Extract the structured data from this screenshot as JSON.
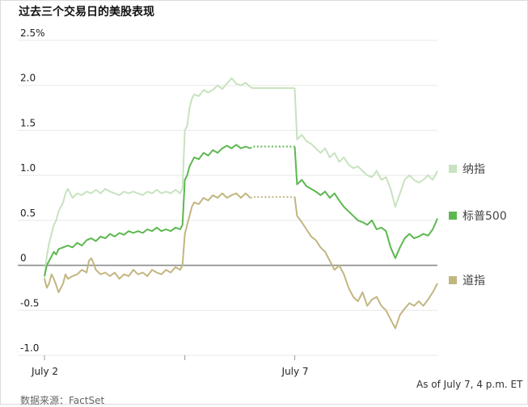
{
  "title": "过去三个交易日的美股表现",
  "note": "As of July 7, 4 p.m. ET",
  "source": "数据来源：FactSet",
  "chart_data": {
    "type": "line",
    "title": "过去三个交易日的美股表现",
    "xlabel": "",
    "ylabel": "",
    "ylim": [
      -1.0,
      2.5
    ],
    "y_ticks": [
      "2.5%",
      "2.0",
      "1.5",
      "1.0",
      "0.5",
      "0",
      "-0.5",
      "-1.0"
    ],
    "x_ticks": [
      "July 2",
      "July 7"
    ],
    "grid": true,
    "legend": "right",
    "series": [
      {
        "name": "纳指",
        "color": "#c7e3bf",
        "values": [
          [
            0,
            -0.15
          ],
          [
            1,
            0.1
          ],
          [
            2,
            0.25
          ],
          [
            3,
            0.35
          ],
          [
            4,
            0.45
          ],
          [
            5,
            0.5
          ],
          [
            6,
            0.6
          ],
          [
            7,
            0.65
          ],
          [
            8,
            0.7
          ],
          [
            9,
            0.8
          ],
          [
            10,
            0.85
          ],
          [
            12,
            0.75
          ],
          [
            14,
            0.8
          ],
          [
            16,
            0.78
          ],
          [
            18,
            0.82
          ],
          [
            20,
            0.8
          ],
          [
            22,
            0.84
          ],
          [
            24,
            0.8
          ],
          [
            26,
            0.85
          ],
          [
            28,
            0.82
          ],
          [
            30,
            0.8
          ],
          [
            32,
            0.78
          ],
          [
            34,
            0.82
          ],
          [
            36,
            0.8
          ],
          [
            38,
            0.82
          ],
          [
            40,
            0.8
          ],
          [
            42,
            0.78
          ],
          [
            44,
            0.82
          ],
          [
            46,
            0.8
          ],
          [
            48,
            0.84
          ],
          [
            50,
            0.8
          ],
          [
            52,
            0.82
          ],
          [
            54,
            0.8
          ],
          [
            56,
            0.84
          ],
          [
            58,
            0.8
          ],
          [
            59,
            0.85
          ],
          [
            60,
            1.5
          ],
          [
            61,
            1.55
          ],
          [
            62,
            1.75
          ],
          [
            63,
            1.85
          ],
          [
            64,
            1.9
          ],
          [
            66,
            1.88
          ],
          [
            68,
            1.95
          ],
          [
            70,
            1.92
          ],
          [
            72,
            1.95
          ],
          [
            74,
            2.0
          ],
          [
            76,
            1.96
          ],
          [
            78,
            2.02
          ],
          [
            80,
            2.08
          ],
          [
            82,
            2.02
          ],
          [
            84,
            2.0
          ],
          [
            86,
            2.03
          ],
          [
            88,
            1.98
          ],
          [
            89,
            1.97
          ],
          [
            91,
            1.97
          ],
          [
            93,
            1.97
          ],
          [
            95,
            1.97
          ],
          [
            97,
            1.97
          ],
          [
            99,
            1.97
          ],
          [
            101,
            1.97
          ],
          [
            103,
            1.97
          ],
          [
            105,
            1.97
          ],
          [
            107,
            1.97
          ],
          [
            108,
            1.4
          ],
          [
            110,
            1.45
          ],
          [
            112,
            1.38
          ],
          [
            114,
            1.35
          ],
          [
            116,
            1.3
          ],
          [
            118,
            1.25
          ],
          [
            120,
            1.3
          ],
          [
            122,
            1.2
          ],
          [
            124,
            1.25
          ],
          [
            126,
            1.15
          ],
          [
            128,
            1.2
          ],
          [
            130,
            1.12
          ],
          [
            132,
            1.08
          ],
          [
            134,
            1.1
          ],
          [
            136,
            1.05
          ],
          [
            138,
            1.0
          ],
          [
            140,
            0.98
          ],
          [
            142,
            1.05
          ],
          [
            144,
            0.95
          ],
          [
            146,
            0.98
          ],
          [
            148,
            0.85
          ],
          [
            150,
            0.65
          ],
          [
            152,
            0.8
          ],
          [
            154,
            0.95
          ],
          [
            156,
            1.0
          ],
          [
            158,
            0.95
          ],
          [
            160,
            0.92
          ],
          [
            162,
            0.95
          ],
          [
            164,
            1.0
          ],
          [
            166,
            0.95
          ],
          [
            168,
            1.05
          ]
        ]
      },
      {
        "name": "标普500",
        "color": "#5cb84f",
        "values": [
          [
            0,
            -0.12
          ],
          [
            1,
            0.0
          ],
          [
            2,
            0.05
          ],
          [
            3,
            0.1
          ],
          [
            4,
            0.15
          ],
          [
            5,
            0.12
          ],
          [
            6,
            0.18
          ],
          [
            8,
            0.2
          ],
          [
            10,
            0.22
          ],
          [
            12,
            0.2
          ],
          [
            14,
            0.25
          ],
          [
            16,
            0.22
          ],
          [
            18,
            0.28
          ],
          [
            20,
            0.3
          ],
          [
            22,
            0.27
          ],
          [
            24,
            0.32
          ],
          [
            26,
            0.3
          ],
          [
            28,
            0.35
          ],
          [
            30,
            0.32
          ],
          [
            32,
            0.36
          ],
          [
            34,
            0.34
          ],
          [
            36,
            0.38
          ],
          [
            38,
            0.36
          ],
          [
            40,
            0.38
          ],
          [
            42,
            0.36
          ],
          [
            44,
            0.4
          ],
          [
            46,
            0.38
          ],
          [
            48,
            0.42
          ],
          [
            50,
            0.38
          ],
          [
            52,
            0.4
          ],
          [
            54,
            0.38
          ],
          [
            56,
            0.42
          ],
          [
            58,
            0.4
          ],
          [
            59,
            0.45
          ],
          [
            60,
            0.95
          ],
          [
            61,
            1.0
          ],
          [
            62,
            1.1
          ],
          [
            63,
            1.15
          ],
          [
            64,
            1.2
          ],
          [
            66,
            1.18
          ],
          [
            68,
            1.25
          ],
          [
            70,
            1.22
          ],
          [
            72,
            1.28
          ],
          [
            74,
            1.25
          ],
          [
            76,
            1.3
          ],
          [
            78,
            1.33
          ],
          [
            80,
            1.3
          ],
          [
            82,
            1.34
          ],
          [
            84,
            1.3
          ],
          [
            86,
            1.32
          ],
          [
            88,
            1.3
          ],
          [
            89,
            1.32
          ],
          [
            91,
            1.32
          ],
          [
            93,
            1.32
          ],
          [
            95,
            1.32
          ],
          [
            97,
            1.32
          ],
          [
            99,
            1.32
          ],
          [
            101,
            1.32
          ],
          [
            103,
            1.32
          ],
          [
            105,
            1.32
          ],
          [
            107,
            1.32
          ],
          [
            108,
            0.9
          ],
          [
            110,
            0.95
          ],
          [
            112,
            0.88
          ],
          [
            114,
            0.85
          ],
          [
            116,
            0.82
          ],
          [
            118,
            0.78
          ],
          [
            120,
            0.82
          ],
          [
            122,
            0.75
          ],
          [
            124,
            0.8
          ],
          [
            126,
            0.72
          ],
          [
            128,
            0.65
          ],
          [
            130,
            0.6
          ],
          [
            132,
            0.55
          ],
          [
            134,
            0.5
          ],
          [
            136,
            0.48
          ],
          [
            138,
            0.45
          ],
          [
            140,
            0.5
          ],
          [
            142,
            0.4
          ],
          [
            144,
            0.42
          ],
          [
            146,
            0.38
          ],
          [
            148,
            0.2
          ],
          [
            150,
            0.08
          ],
          [
            152,
            0.2
          ],
          [
            154,
            0.3
          ],
          [
            156,
            0.35
          ],
          [
            158,
            0.3
          ],
          [
            160,
            0.32
          ],
          [
            162,
            0.35
          ],
          [
            164,
            0.33
          ],
          [
            166,
            0.4
          ],
          [
            168,
            0.52
          ]
        ]
      },
      {
        "name": "道指",
        "color": "#c2b680",
        "values": [
          [
            0,
            -0.15
          ],
          [
            1,
            -0.25
          ],
          [
            2,
            -0.2
          ],
          [
            3,
            -0.1
          ],
          [
            4,
            -0.15
          ],
          [
            5,
            -0.22
          ],
          [
            6,
            -0.3
          ],
          [
            7,
            -0.25
          ],
          [
            8,
            -0.2
          ],
          [
            9,
            -0.1
          ],
          [
            10,
            -0.15
          ],
          [
            12,
            -0.12
          ],
          [
            14,
            -0.1
          ],
          [
            16,
            -0.05
          ],
          [
            18,
            -0.08
          ],
          [
            19,
            0.05
          ],
          [
            20,
            0.08
          ],
          [
            21,
            0.02
          ],
          [
            22,
            -0.05
          ],
          [
            24,
            -0.1
          ],
          [
            26,
            -0.08
          ],
          [
            28,
            -0.12
          ],
          [
            30,
            -0.08
          ],
          [
            32,
            -0.15
          ],
          [
            34,
            -0.1
          ],
          [
            36,
            -0.12
          ],
          [
            38,
            -0.05
          ],
          [
            40,
            -0.1
          ],
          [
            42,
            -0.08
          ],
          [
            44,
            -0.12
          ],
          [
            46,
            -0.05
          ],
          [
            48,
            -0.08
          ],
          [
            50,
            -0.1
          ],
          [
            52,
            -0.05
          ],
          [
            54,
            -0.08
          ],
          [
            56,
            -0.02
          ],
          [
            58,
            -0.05
          ],
          [
            59,
            0.0
          ],
          [
            60,
            0.35
          ],
          [
            61,
            0.45
          ],
          [
            62,
            0.55
          ],
          [
            63,
            0.65
          ],
          [
            64,
            0.7
          ],
          [
            66,
            0.68
          ],
          [
            68,
            0.75
          ],
          [
            70,
            0.72
          ],
          [
            72,
            0.78
          ],
          [
            74,
            0.75
          ],
          [
            76,
            0.8
          ],
          [
            78,
            0.75
          ],
          [
            80,
            0.78
          ],
          [
            82,
            0.8
          ],
          [
            84,
            0.75
          ],
          [
            86,
            0.8
          ],
          [
            88,
            0.75
          ],
          [
            89,
            0.76
          ],
          [
            91,
            0.76
          ],
          [
            93,
            0.76
          ],
          [
            95,
            0.76
          ],
          [
            97,
            0.76
          ],
          [
            99,
            0.76
          ],
          [
            101,
            0.76
          ],
          [
            103,
            0.76
          ],
          [
            105,
            0.76
          ],
          [
            107,
            0.76
          ],
          [
            108,
            0.55
          ],
          [
            110,
            0.48
          ],
          [
            112,
            0.4
          ],
          [
            114,
            0.32
          ],
          [
            116,
            0.28
          ],
          [
            118,
            0.2
          ],
          [
            120,
            0.15
          ],
          [
            122,
            0.05
          ],
          [
            124,
            -0.05
          ],
          [
            126,
            0.0
          ],
          [
            128,
            -0.1
          ],
          [
            130,
            -0.25
          ],
          [
            132,
            -0.35
          ],
          [
            134,
            -0.4
          ],
          [
            136,
            -0.3
          ],
          [
            138,
            -0.45
          ],
          [
            140,
            -0.38
          ],
          [
            142,
            -0.35
          ],
          [
            144,
            -0.45
          ],
          [
            146,
            -0.5
          ],
          [
            148,
            -0.6
          ],
          [
            150,
            -0.7
          ],
          [
            152,
            -0.55
          ],
          [
            154,
            -0.48
          ],
          [
            156,
            -0.42
          ],
          [
            158,
            -0.45
          ],
          [
            160,
            -0.4
          ],
          [
            162,
            -0.45
          ],
          [
            164,
            -0.38
          ],
          [
            166,
            -0.3
          ],
          [
            168,
            -0.2
          ]
        ]
      }
    ],
    "gaps": [
      [
        88,
        107
      ]
    ]
  }
}
